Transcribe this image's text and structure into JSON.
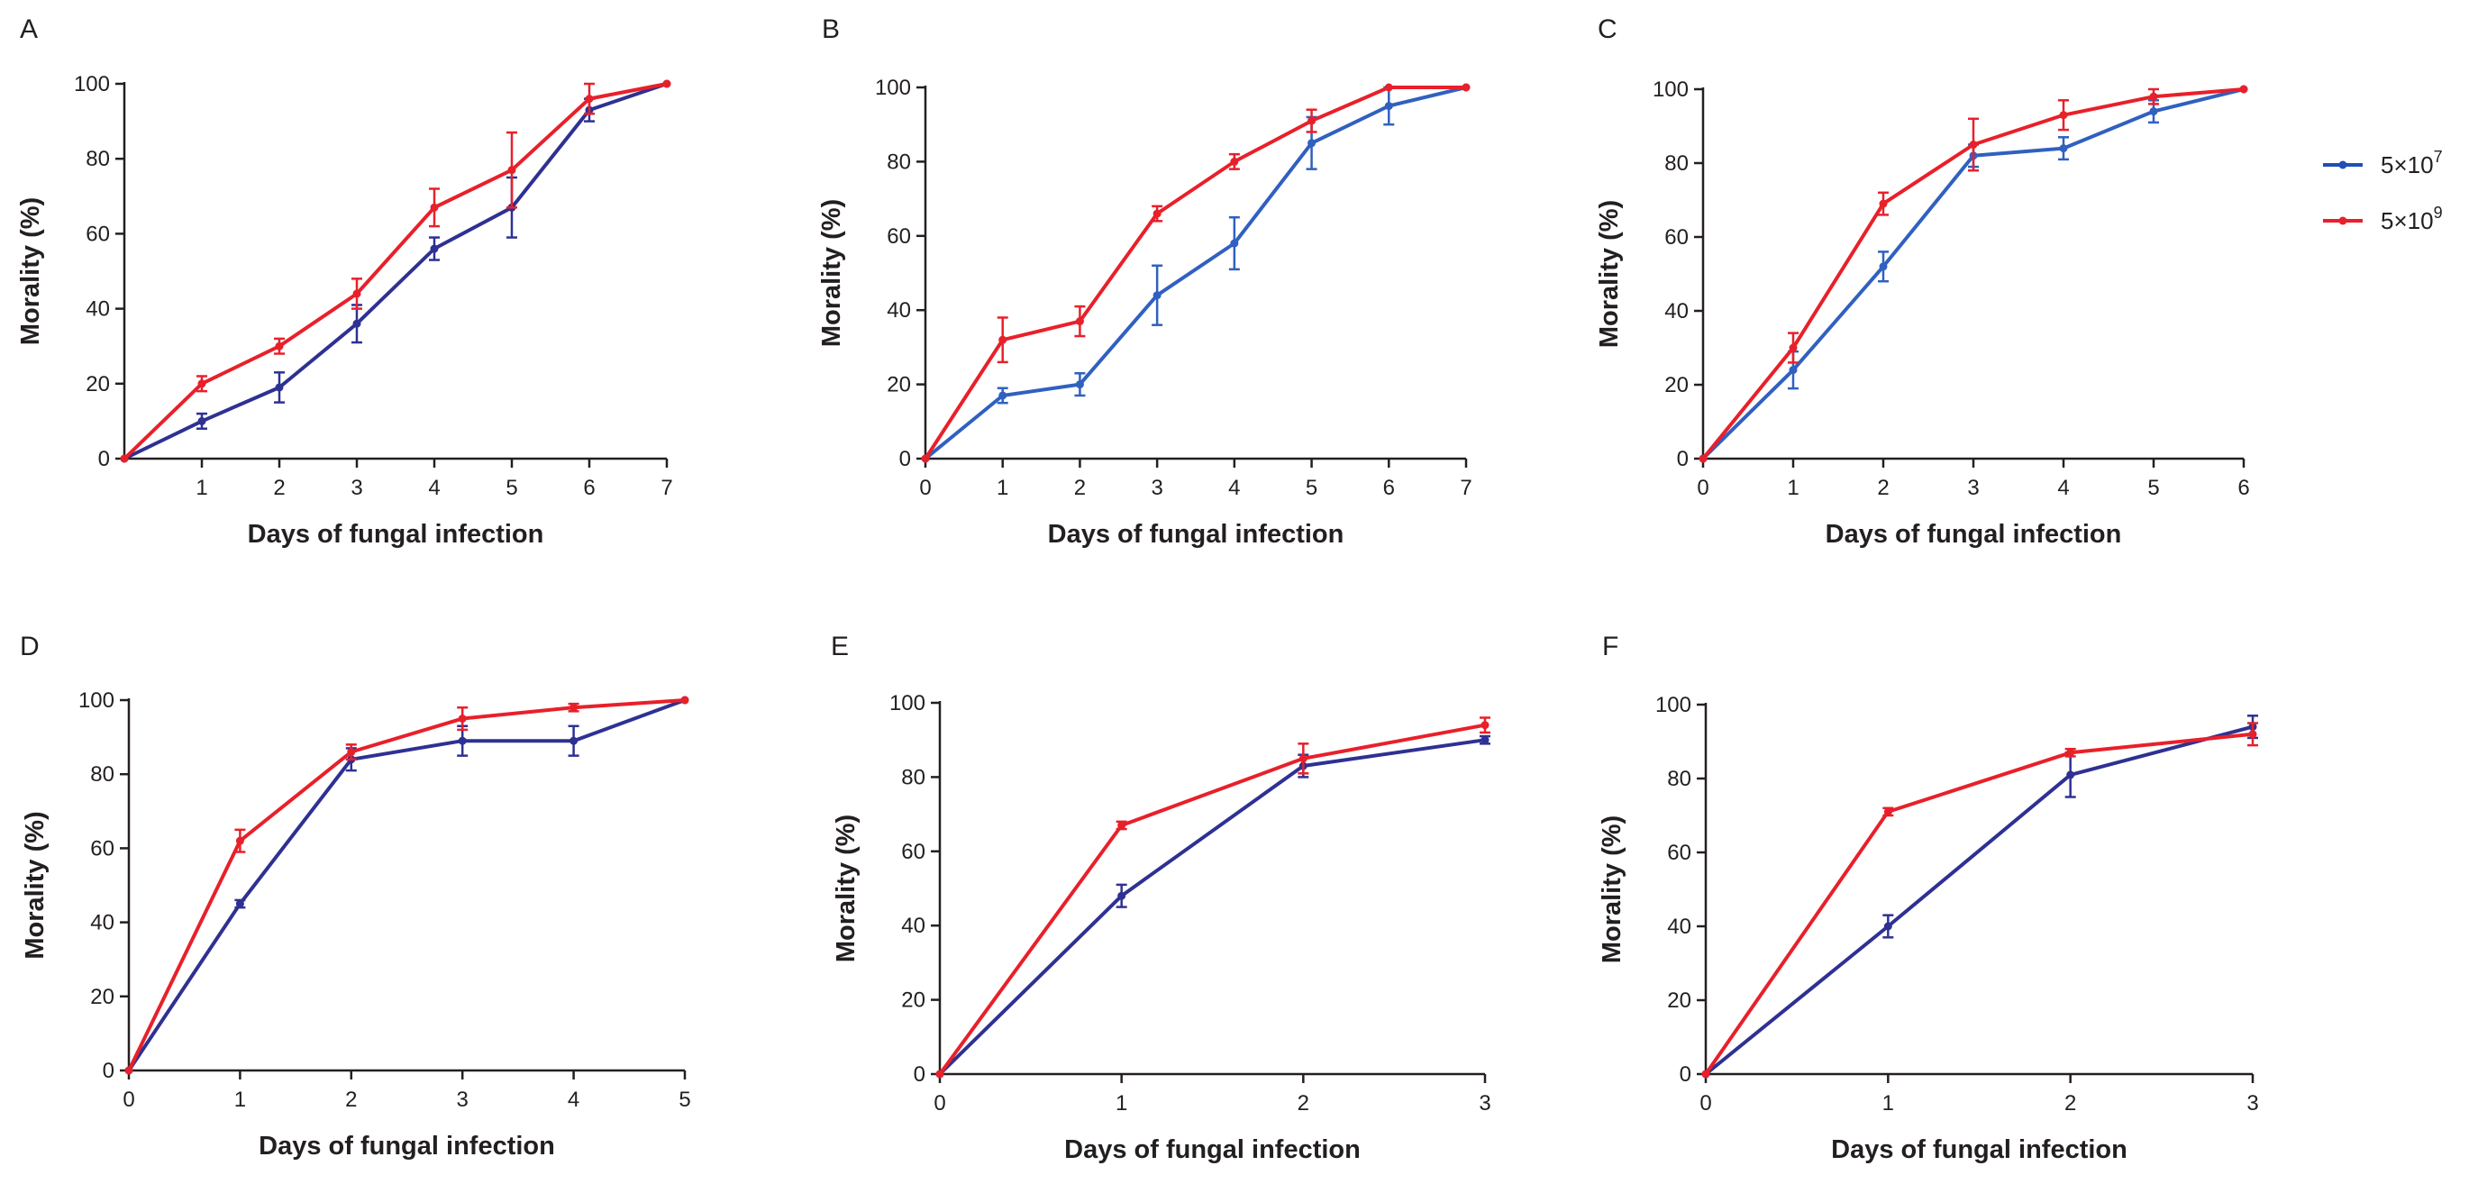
{
  "legend": [
    {
      "base": "5×10",
      "exp": "7",
      "color": "#1f4fb8"
    },
    {
      "base": "5×10",
      "exp": "9",
      "color": "#e8202a"
    }
  ],
  "chart_data": [
    {
      "type": "line",
      "panel": "A",
      "xlabel": "Days of fungal infection",
      "ylabel": "Morality (%)",
      "xlim": [
        0,
        7
      ],
      "ylim": [
        0,
        100
      ],
      "xticks": [
        1,
        2,
        3,
        4,
        5,
        6,
        7
      ],
      "yticks": [
        0,
        20,
        40,
        60,
        80,
        100
      ],
      "series": [
        {
          "name": "5×10^7",
          "color": "#2e3192",
          "x": [
            0,
            1,
            2,
            3,
            4,
            5,
            6,
            7
          ],
          "values": [
            0,
            10,
            19,
            36,
            56,
            67,
            93,
            100
          ],
          "errors": [
            0,
            2,
            4,
            5,
            3,
            8,
            3,
            0
          ]
        },
        {
          "name": "5×10^9",
          "color": "#e8202a",
          "x": [
            0,
            1,
            2,
            3,
            4,
            5,
            6,
            7
          ],
          "values": [
            0,
            20,
            30,
            44,
            67,
            77,
            96,
            100
          ],
          "errors": [
            0,
            2,
            2,
            4,
            5,
            10,
            4,
            0
          ]
        }
      ]
    },
    {
      "type": "line",
      "panel": "B",
      "xlabel": "Days of fungal infection",
      "ylabel": "Morality (%)",
      "xlim": [
        0,
        7
      ],
      "ylim": [
        0,
        100
      ],
      "xticks": [
        0,
        1,
        2,
        3,
        4,
        5,
        6,
        7
      ],
      "yticks": [
        0,
        20,
        40,
        60,
        80,
        100
      ],
      "series": [
        {
          "name": "5×10^7",
          "color": "#3060c0",
          "x": [
            0,
            1,
            2,
            3,
            4,
            5,
            6,
            7
          ],
          "values": [
            0,
            17,
            20,
            44,
            58,
            85,
            95,
            100
          ],
          "errors": [
            0,
            2,
            3,
            8,
            7,
            7,
            5,
            0
          ]
        },
        {
          "name": "5×10^9",
          "color": "#e8202a",
          "x": [
            0,
            1,
            2,
            3,
            4,
            5,
            6,
            7
          ],
          "values": [
            0,
            32,
            37,
            66,
            80,
            91,
            100,
            100
          ],
          "errors": [
            0,
            6,
            4,
            2,
            2,
            3,
            0,
            0
          ]
        }
      ]
    },
    {
      "type": "line",
      "panel": "C",
      "xlabel": "Days of fungal infection",
      "ylabel": "Morality (%)",
      "xlim": [
        0,
        6
      ],
      "ylim": [
        0,
        100
      ],
      "xticks": [
        0,
        1,
        2,
        3,
        4,
        5,
        6
      ],
      "yticks": [
        0,
        20,
        40,
        60,
        80,
        100
      ],
      "series": [
        {
          "name": "5×10^7",
          "color": "#3060c0",
          "x": [
            0,
            1,
            2,
            3,
            4,
            5,
            6
          ],
          "values": [
            0,
            24,
            52,
            82,
            84,
            94,
            100
          ],
          "errors": [
            0,
            5,
            4,
            3,
            3,
            3,
            0
          ]
        },
        {
          "name": "5×10^9",
          "color": "#e8202a",
          "x": [
            0,
            1,
            2,
            3,
            4,
            5,
            6
          ],
          "values": [
            0,
            30,
            69,
            85,
            93,
            98,
            100
          ],
          "errors": [
            0,
            4,
            3,
            7,
            4,
            2,
            0
          ]
        }
      ]
    },
    {
      "type": "line",
      "panel": "D",
      "xlabel": "Days of fungal infection",
      "ylabel": "Morality (%)",
      "xlim": [
        0,
        5
      ],
      "ylim": [
        0,
        100
      ],
      "xticks": [
        0,
        1,
        2,
        3,
        4,
        5
      ],
      "yticks": [
        0,
        20,
        40,
        60,
        80,
        100
      ],
      "series": [
        {
          "name": "5×10^7",
          "color": "#2e3192",
          "x": [
            0,
            1,
            2,
            3,
            4,
            5
          ],
          "values": [
            0,
            45,
            84,
            89,
            89,
            100
          ],
          "errors": [
            0,
            1,
            3,
            4,
            4,
            0
          ]
        },
        {
          "name": "5×10^9",
          "color": "#e8202a",
          "x": [
            0,
            1,
            2,
            3,
            4,
            5
          ],
          "values": [
            0,
            62,
            86,
            95,
            98,
            100
          ],
          "errors": [
            0,
            3,
            2,
            3,
            1,
            0
          ]
        }
      ]
    },
    {
      "type": "line",
      "panel": "E",
      "xlabel": "Days of fungal infection",
      "ylabel": "Morality (%)",
      "xlim": [
        0,
        3
      ],
      "ylim": [
        0,
        100
      ],
      "xticks": [
        0,
        1,
        2,
        3
      ],
      "yticks": [
        0,
        20,
        40,
        60,
        80,
        100
      ],
      "series": [
        {
          "name": "5×10^7",
          "color": "#2e3192",
          "x": [
            0,
            1,
            2,
            3
          ],
          "values": [
            0,
            48,
            83,
            90
          ],
          "errors": [
            0,
            3,
            3,
            1
          ]
        },
        {
          "name": "5×10^9",
          "color": "#e8202a",
          "x": [
            0,
            1,
            2,
            3
          ],
          "values": [
            0,
            67,
            85,
            94
          ],
          "errors": [
            0,
            1,
            4,
            2
          ]
        }
      ]
    },
    {
      "type": "line",
      "panel": "F",
      "xlabel": "Days of fungal infection",
      "ylabel": "Morality (%)",
      "xlim": [
        0,
        3
      ],
      "ylim": [
        0,
        100
      ],
      "xticks": [
        0,
        1,
        2,
        3
      ],
      "yticks": [
        0,
        20,
        40,
        60,
        80,
        100
      ],
      "series": [
        {
          "name": "5×10^7",
          "color": "#2e3192",
          "x": [
            0,
            1,
            2,
            3
          ],
          "values": [
            0,
            40,
            81,
            94
          ],
          "errors": [
            0,
            3,
            6,
            3
          ]
        },
        {
          "name": "5×10^9",
          "color": "#e8202a",
          "x": [
            0,
            1,
            2,
            3
          ],
          "values": [
            0,
            71,
            87,
            92
          ],
          "errors": [
            0,
            1,
            1,
            3
          ]
        }
      ]
    }
  ]
}
